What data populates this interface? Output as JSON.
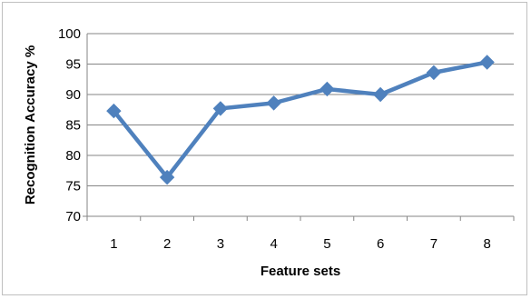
{
  "chart_data": {
    "type": "line",
    "xlabel": "Feature sets",
    "ylabel": "Recognition Accuracy %",
    "categories": [
      "1",
      "2",
      "3",
      "4",
      "5",
      "6",
      "7",
      "8"
    ],
    "yticks": [
      "70",
      "75",
      "80",
      "85",
      "90",
      "95",
      "100"
    ],
    "ylim": [
      70,
      100
    ],
    "grid": "horizontal",
    "legend": "none",
    "colors": {
      "series": "#4f81bd",
      "grid": "#868686",
      "axis": "#868686"
    },
    "series": [
      {
        "values": [
          87.3,
          76.4,
          87.7,
          88.6,
          90.9,
          90.0,
          93.6,
          95.3
        ]
      }
    ]
  }
}
